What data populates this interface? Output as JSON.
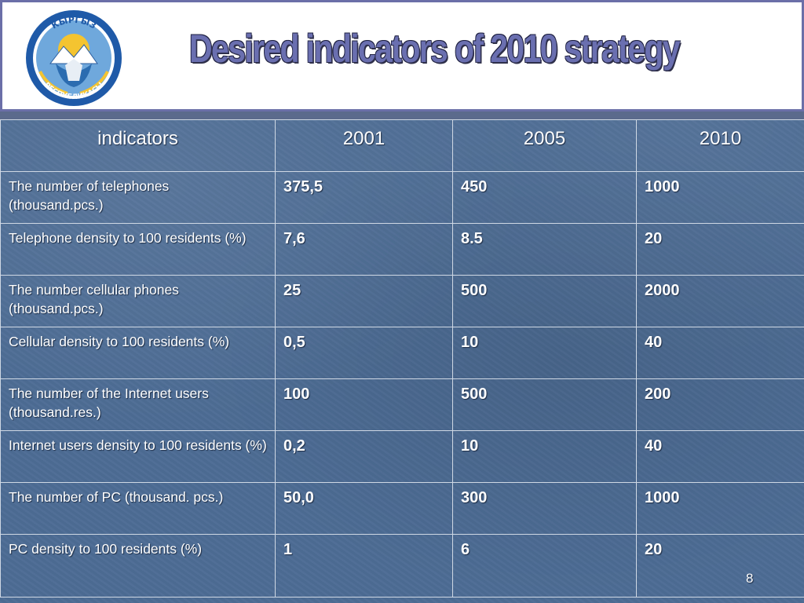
{
  "slide": {
    "title": "Desired indicators of 2010 strategy",
    "page_number": "8"
  },
  "emblem": {
    "top_text": "КЫРГЫЗ",
    "bottom_text": "РЕСПУБЛИКАСЫ"
  },
  "table": {
    "headers": [
      "indicators",
      "2001",
      "2005",
      "2010"
    ],
    "rows": [
      {
        "label": "The number of telephones (thousand.pcs.)",
        "v2001": "375,5",
        "v2005": "450",
        "v2010": "1000"
      },
      {
        "label": "Telephone density to 100 residents (%)",
        "v2001": "7,6",
        "v2005": "8.5",
        "v2010": "20"
      },
      {
        "label": "The number cellular phones (thousand.pcs.)",
        "v2001": "25",
        "v2005": "500",
        "v2010": "2000"
      },
      {
        "label": "Cellular density to 100 residents (%)",
        "v2001": "0,5",
        "v2005": "10",
        "v2010": "40"
      },
      {
        "label": "The number of the Internet users (thousand.res.)",
        "v2001": "100",
        "v2005": "500",
        "v2010": "200"
      },
      {
        "label": "Internet users density to 100 residents (%)",
        "v2001": "0,2",
        "v2005": "10",
        "v2010": "40"
      },
      {
        "label": "The number of PC (thousand. pcs.)",
        "v2001": "50,0",
        "v2005": "300",
        "v2010": "1000"
      },
      {
        "label": "PC density to 100 residents (%)",
        "v2001": "1",
        "v2005": "6",
        "v2010": "20"
      }
    ]
  }
}
